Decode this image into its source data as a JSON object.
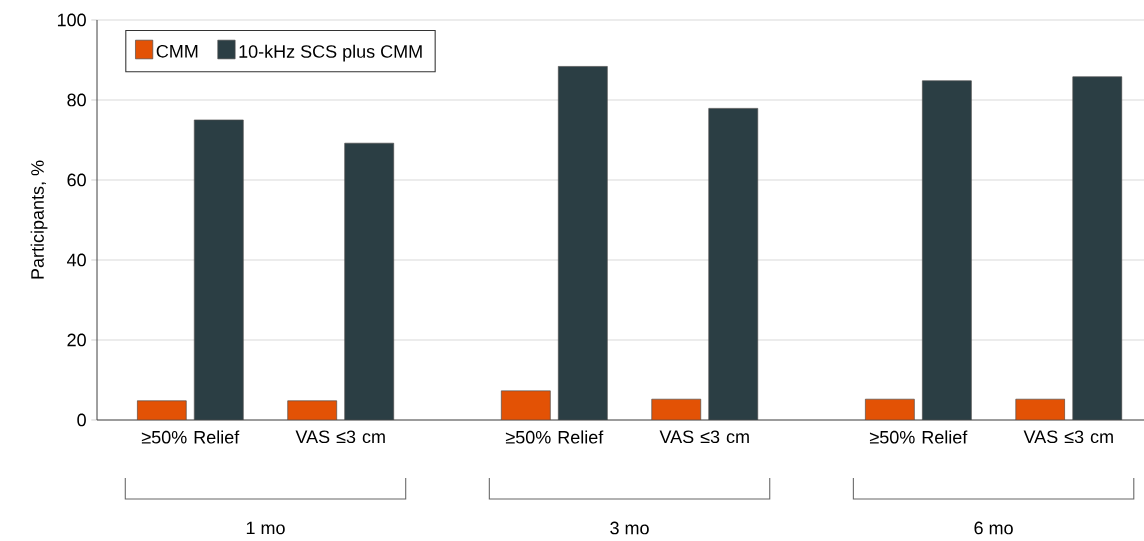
{
  "chart_data": {
    "type": "bar",
    "ylabel": "Participants, %",
    "categories": [
      "≥50% Relief",
      "VAS ≤3 cm",
      "≥50% Relief",
      "VAS ≤3 cm",
      "≥50% Relief",
      "VAS ≤3 cm"
    ],
    "series": [
      {
        "name": "CMM",
        "color": "#e35205",
        "values": [
          4.8,
          4.8,
          7.3,
          5.2,
          5.2,
          5.2
        ]
      },
      {
        "name": "10-kHz SCS plus CMM",
        "color": "#2b3e44",
        "values": [
          75,
          69.2,
          88.4,
          77.9,
          84.8,
          85.8
        ]
      }
    ],
    "ylim": [
      0,
      100
    ],
    "yticks": [
      0,
      20,
      40,
      60,
      80,
      100
    ],
    "grid": "y",
    "legend": "top left",
    "annotations": [
      "1 mo",
      "3 mo",
      "6 mo"
    ]
  }
}
